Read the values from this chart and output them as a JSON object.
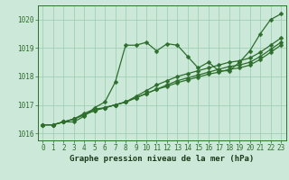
{
  "title": "Graphe pression niveau de la mer (hPa)",
  "background_color": "#cce8d8",
  "grid_color": "#99ccb0",
  "line_color": "#2d6e2d",
  "xlim": [
    -0.5,
    23.5
  ],
  "ylim": [
    1015.75,
    1020.5
  ],
  "yticks": [
    1016,
    1017,
    1018,
    1019,
    1020
  ],
  "xticks": [
    0,
    1,
    2,
    3,
    4,
    5,
    6,
    7,
    8,
    9,
    10,
    11,
    12,
    13,
    14,
    15,
    16,
    17,
    18,
    19,
    20,
    21,
    22,
    23
  ],
  "series": [
    [
      1016.3,
      1016.3,
      1016.4,
      1016.4,
      1016.6,
      1016.9,
      1017.1,
      1017.8,
      1019.1,
      1019.1,
      1019.2,
      1018.9,
      1019.15,
      1019.1,
      1018.7,
      1018.3,
      1018.5,
      1018.2,
      1018.2,
      1018.5,
      1018.9,
      1019.5,
      1020.0,
      1020.2
    ],
    [
      1016.3,
      1016.3,
      1016.4,
      1016.5,
      1016.7,
      1016.85,
      1016.9,
      1017.0,
      1017.1,
      1017.3,
      1017.5,
      1017.7,
      1017.85,
      1018.0,
      1018.1,
      1018.2,
      1018.3,
      1018.4,
      1018.5,
      1018.55,
      1018.65,
      1018.85,
      1019.1,
      1019.35
    ],
    [
      1016.3,
      1016.3,
      1016.4,
      1016.5,
      1016.65,
      1016.8,
      1016.9,
      1017.0,
      1017.1,
      1017.25,
      1017.4,
      1017.55,
      1017.7,
      1017.85,
      1017.95,
      1018.05,
      1018.15,
      1018.25,
      1018.35,
      1018.4,
      1018.5,
      1018.7,
      1018.95,
      1019.2
    ],
    [
      1016.3,
      1016.3,
      1016.4,
      1016.5,
      1016.65,
      1016.8,
      1016.9,
      1017.0,
      1017.1,
      1017.25,
      1017.4,
      1017.55,
      1017.65,
      1017.78,
      1017.88,
      1017.98,
      1018.08,
      1018.15,
      1018.25,
      1018.3,
      1018.4,
      1018.6,
      1018.85,
      1019.1
    ]
  ],
  "marker": "D",
  "marker_size": 2.5,
  "linewidth": 0.9,
  "tick_fontsize": 5.5,
  "label_fontsize": 6.5
}
